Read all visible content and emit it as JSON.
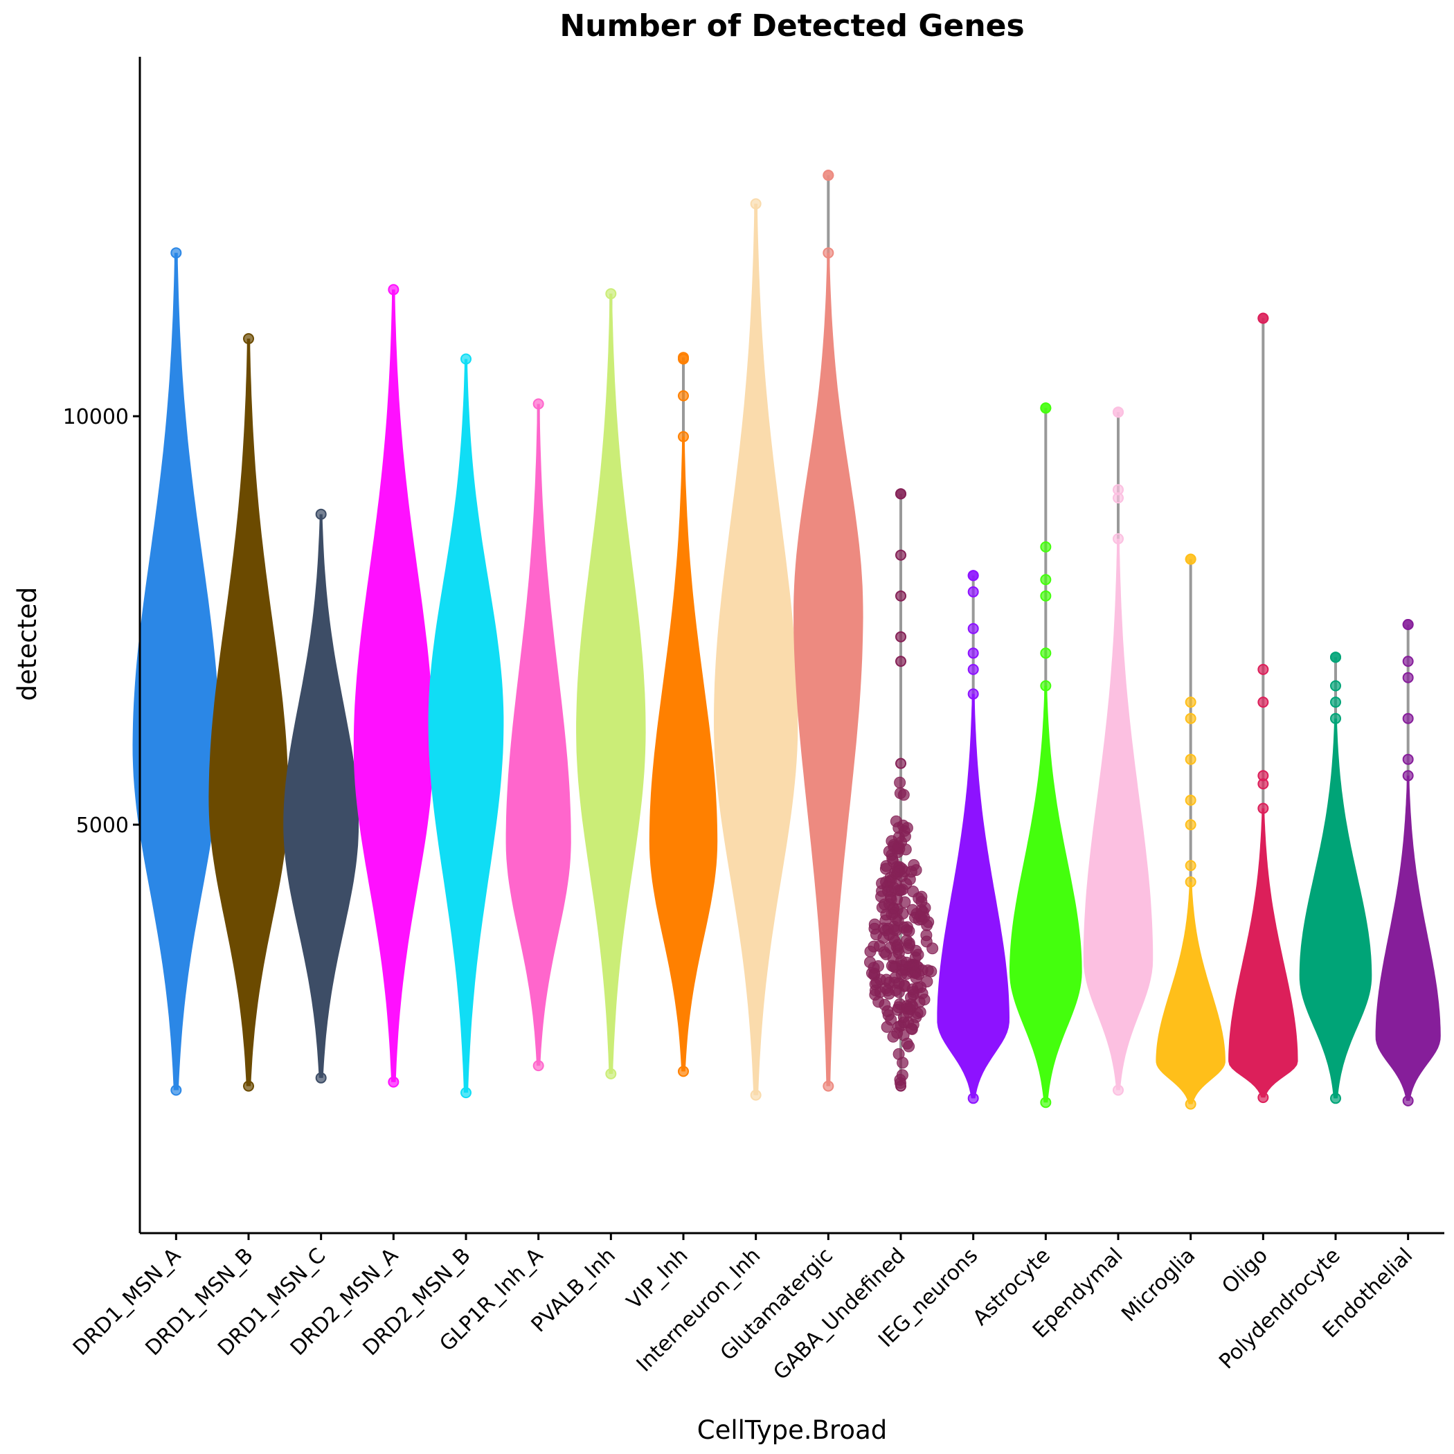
{
  "chart_data": {
    "type": "violin",
    "title": "Number of Detected Genes",
    "xlabel": "CellType.Broad",
    "ylabel": "detected",
    "ylim": [
      0,
      14400
    ],
    "yticks": [
      5000,
      10000
    ],
    "grid": false,
    "legend": "none",
    "categories": [
      {
        "name": "DRD1_MSN_A",
        "color": "#2b87e6",
        "min": 1750,
        "max": 12000,
        "peak": 5950,
        "maxWidthHalf": 0.6,
        "outliers": [],
        "beeswarm": false
      },
      {
        "name": "DRD1_MSN_B",
        "color": "#6b4a00",
        "min": 1800,
        "max": 10950,
        "peak": 5300,
        "maxWidthHalf": 0.55,
        "outliers": [],
        "beeswarm": false
      },
      {
        "name": "DRD1_MSN_C",
        "color": "#3d4d66",
        "min": 1900,
        "max": 8800,
        "peak": 5000,
        "maxWidthHalf": 0.52,
        "outliers": [],
        "beeswarm": false
      },
      {
        "name": "DRD2_MSN_A",
        "color": "#ff10ff",
        "min": 1850,
        "max": 11550,
        "peak": 5950,
        "maxWidthHalf": 0.55,
        "outliers": [],
        "beeswarm": false
      },
      {
        "name": "DRD2_MSN_B",
        "color": "#10ddf5",
        "min": 1720,
        "max": 10700,
        "peak": 6250,
        "maxWidthHalf": 0.52,
        "outliers": [],
        "beeswarm": false
      },
      {
        "name": "GLP1R_Inh_A",
        "color": "#ff66cc",
        "min": 2050,
        "max": 10150,
        "peak": 4800,
        "maxWidthHalf": 0.45,
        "outliers": [],
        "beeswarm": false
      },
      {
        "name": "PVALB_Inh",
        "color": "#cbed77",
        "min": 1950,
        "max": 11500,
        "peak": 6150,
        "maxWidthHalf": 0.48,
        "outliers": [],
        "beeswarm": false
      },
      {
        "name": "VIP_Inh",
        "color": "#ff8000",
        "min": 1980,
        "max": 10720,
        "peak": 4800,
        "maxWidthHalf": 0.47,
        "outliers": [
          9750,
          10250,
          10700
        ],
        "beeswarm": false
      },
      {
        "name": "Interneuron_Inh",
        "color": "#fadbac",
        "min": 1690,
        "max": 12600,
        "peak": 6250,
        "maxWidthHalf": 0.58,
        "outliers": [],
        "beeswarm": false
      },
      {
        "name": "Glutamatergic",
        "color": "#ed8a80",
        "min": 1800,
        "max": 12950,
        "peak": 7600,
        "maxWidthHalf": 0.48,
        "outliers": [
          12000,
          12950
        ],
        "beeswarm": false
      },
      {
        "name": "GABA_Undefined",
        "color": "#852257",
        "min": 1800,
        "max": 9050,
        "peak": 3350,
        "maxWidthHalf": 0.45,
        "outliers": [
          5750,
          7000,
          7300,
          7800,
          8300,
          9050
        ],
        "beeswarm": true
      },
      {
        "name": "IEG_neurons",
        "color": "#8d12ff",
        "min": 1650,
        "max": 8050,
        "peak": 2600,
        "maxWidthHalf": 0.5,
        "outliers": [
          6600,
          6900,
          7100,
          7400,
          7850,
          8050
        ],
        "beeswarm": false
      },
      {
        "name": "Astrocyte",
        "color": "#44ff0d",
        "min": 1600,
        "max": 10100,
        "peak": 3200,
        "maxWidthHalf": 0.5,
        "outliers": [
          6700,
          7100,
          7800,
          8000,
          8400,
          10100
        ],
        "beeswarm": false
      },
      {
        "name": "Ependymal",
        "color": "#fcc0e1",
        "min": 1750,
        "max": 10050,
        "peak": 3350,
        "maxWidthHalf": 0.48,
        "outliers": [
          8500,
          9000,
          9100,
          10050
        ],
        "beeswarm": false
      },
      {
        "name": "Microglia",
        "color": "#ffbf1a",
        "min": 1580,
        "max": 8250,
        "peak": 2100,
        "maxWidthHalf": 0.48,
        "outliers": [
          4300,
          4500,
          5000,
          5300,
          5800,
          6300,
          6500,
          8250
        ],
        "beeswarm": false
      },
      {
        "name": "Oligo",
        "color": "#dc1f5a",
        "min": 1660,
        "max": 11200,
        "peak": 2100,
        "maxWidthHalf": 0.48,
        "outliers": [
          5200,
          5500,
          5600,
          6500,
          6900,
          11200
        ],
        "beeswarm": false
      },
      {
        "name": "Polydendrocyte",
        "color": "#00a477",
        "min": 1650,
        "max": 7050,
        "peak": 3150,
        "maxWidthHalf": 0.5,
        "outliers": [
          6300,
          6500,
          6700,
          7050
        ],
        "beeswarm": false
      },
      {
        "name": "Endothelial",
        "color": "#861e9a",
        "min": 1620,
        "max": 7450,
        "peak": 2400,
        "maxWidthHalf": 0.45,
        "outliers": [
          5600,
          5800,
          6300,
          6800,
          7000,
          7450
        ],
        "beeswarm": false
      }
    ]
  }
}
